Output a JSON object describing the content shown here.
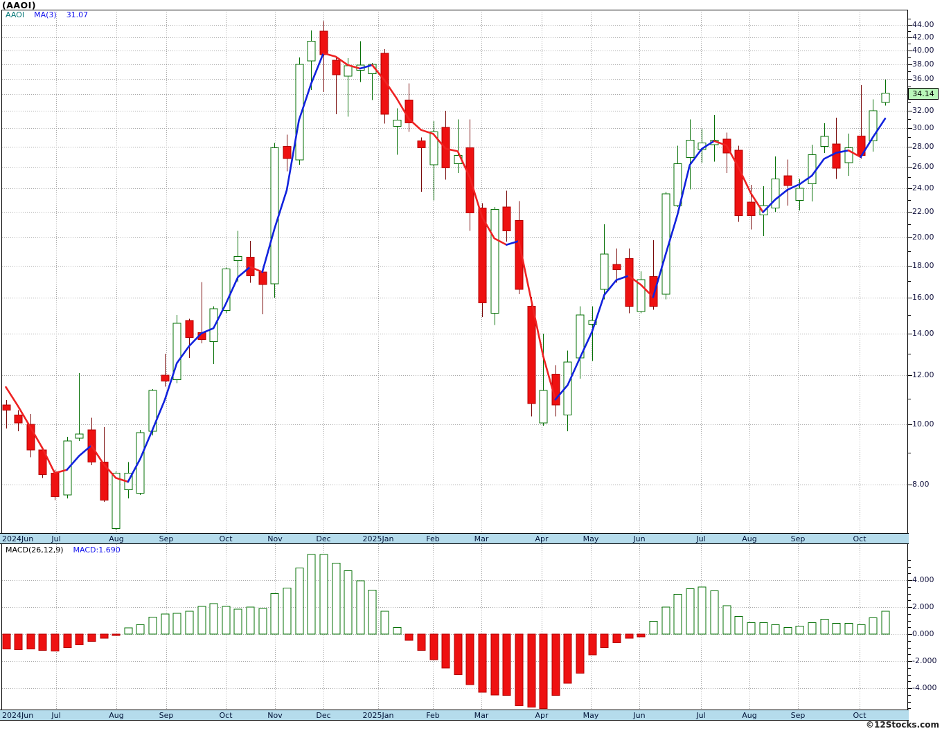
{
  "title": "(AAOI)",
  "legend": {
    "symbol": "AAOI",
    "ma_label": "MA(3)",
    "ma_value": "31.07"
  },
  "macd_panel": {
    "params_label": "MACD(26,12,9)",
    "value_label": "MACD:1.690"
  },
  "watermark": "©12Stocks.com",
  "price_axis": {
    "labeled_ticks": [
      44,
      42,
      40,
      38,
      36,
      34,
      32,
      30,
      28,
      26,
      24,
      22,
      20,
      18,
      16,
      14,
      12,
      10,
      8
    ],
    "minor_step": 1,
    "last_price_label": "34.14"
  },
  "macd_axis": {
    "labeled_ticks": [
      4,
      2,
      0,
      -2,
      -4
    ],
    "minor_step": 0.5
  },
  "x_axis": {
    "months": [
      {
        "label": "2024Jun",
        "line": null,
        "x": 3
      },
      {
        "label": "Jul",
        "line": 81
      },
      {
        "label": "Aug",
        "line": 168
      },
      {
        "label": "Sep",
        "line": 240
      },
      {
        "label": "Oct",
        "line": 326
      },
      {
        "label": "Nov",
        "line": 397
      },
      {
        "label": "Dec",
        "line": 467
      },
      {
        "label": "2025Jan",
        "line": 546
      },
      {
        "label": "Feb",
        "line": 625
      },
      {
        "label": "Mar",
        "line": 695
      },
      {
        "label": "Apr",
        "line": 782
      },
      {
        "label": "May",
        "line": 853
      },
      {
        "label": "Jun",
        "line": 923
      },
      {
        "label": "Jul",
        "line": 1012
      },
      {
        "label": "Aug",
        "line": 1082
      },
      {
        "label": "Sep",
        "line": 1152
      },
      {
        "label": "Oct",
        "line": 1241
      }
    ]
  },
  "colors": {
    "candle_up": "#067006",
    "candle_down_fill": "#ee1111",
    "candle_down_border": "#b30000",
    "wick_down": "#7a0a0a",
    "ma_up": "#1122dd",
    "ma_down": "#ee2222",
    "grid": "#a8a8a8",
    "strip_bg": "#b5dcec",
    "strip_text": "#001237",
    "axis_text": "#10103c",
    "badge_bg": "#b9f7b9",
    "legend_symbol": "#067878",
    "legend_value": "#1111ee"
  },
  "chart_data": {
    "type": "candlestick",
    "symbol": "AAOI",
    "interval": "weekly",
    "x_range": "Jun 2024 - Oct 2025",
    "y_scale": "log",
    "price_ylim": [
      6.75,
      44.6
    ],
    "moving_average": {
      "period": 3,
      "last_value": 31.07,
      "seed": [
        12.4,
        11.5
      ]
    },
    "last_close": 34.14,
    "ohlc": [
      [
        10.75,
        10.95,
        9.85,
        10.55
      ],
      [
        10.35,
        10.55,
        9.75,
        10.05
      ],
      [
        10.0,
        10.4,
        8.85,
        9.1
      ],
      [
        9.1,
        9.2,
        8.2,
        8.3
      ],
      [
        8.35,
        8.45,
        7.55,
        7.65
      ],
      [
        7.7,
        9.55,
        7.6,
        9.4
      ],
      [
        9.5,
        12.1,
        9.4,
        9.65
      ],
      [
        9.8,
        10.25,
        8.6,
        8.7
      ],
      [
        8.7,
        9.9,
        7.5,
        7.55
      ],
      [
        6.8,
        8.4,
        6.75,
        8.35
      ],
      [
        7.85,
        8.7,
        7.6,
        8.35
      ],
      [
        7.75,
        9.8,
        7.7,
        9.7
      ],
      [
        9.75,
        11.4,
        9.6,
        11.35
      ],
      [
        12.0,
        13.0,
        11.5,
        11.75
      ],
      [
        11.8,
        15.0,
        11.65,
        14.55
      ],
      [
        14.7,
        14.8,
        12.8,
        13.8
      ],
      [
        14.05,
        16.95,
        13.5,
        13.7
      ],
      [
        13.6,
        15.5,
        12.5,
        15.35
      ],
      [
        15.25,
        17.9,
        15.1,
        17.8
      ],
      [
        18.35,
        20.5,
        16.95,
        18.65
      ],
      [
        18.6,
        19.75,
        16.9,
        17.35
      ],
      [
        17.6,
        17.8,
        15.05,
        16.8
      ],
      [
        16.85,
        28.4,
        16.0,
        27.9
      ],
      [
        28.05,
        29.3,
        25.55,
        26.8
      ],
      [
        26.65,
        39.0,
        26.2,
        38.0
      ],
      [
        38.5,
        43.1,
        34.55,
        41.4
      ],
      [
        43.0,
        44.6,
        34.3,
        39.4
      ],
      [
        38.6,
        39.2,
        31.6,
        36.55
      ],
      [
        36.4,
        38.9,
        31.3,
        37.8
      ],
      [
        37.2,
        41.4,
        35.6,
        37.9
      ],
      [
        36.7,
        38.2,
        33.3,
        38.0
      ],
      [
        39.6,
        40.2,
        30.5,
        31.6
      ],
      [
        30.2,
        32.3,
        27.2,
        30.9
      ],
      [
        33.3,
        35.4,
        29.6,
        30.6
      ],
      [
        28.6,
        29.0,
        23.7,
        27.9
      ],
      [
        26.2,
        30.8,
        22.95,
        29.6
      ],
      [
        30.1,
        32.0,
        24.8,
        25.9
      ],
      [
        26.3,
        31.0,
        25.4,
        27.1
      ],
      [
        27.9,
        31.0,
        20.5,
        21.9
      ],
      [
        22.3,
        22.7,
        14.9,
        15.7
      ],
      [
        15.1,
        22.4,
        14.45,
        22.2
      ],
      [
        22.4,
        23.8,
        19.7,
        20.5
      ],
      [
        21.3,
        22.9,
        16.2,
        16.5
      ],
      [
        15.5,
        16.05,
        10.3,
        10.8
      ],
      [
        10.05,
        14.0,
        9.95,
        11.35
      ],
      [
        12.05,
        12.45,
        10.3,
        10.75
      ],
      [
        10.35,
        13.15,
        9.75,
        12.6
      ],
      [
        12.8,
        15.5,
        11.85,
        15.0
      ],
      [
        14.5,
        15.5,
        12.65,
        14.7
      ],
      [
        16.5,
        21.0,
        15.9,
        18.8
      ],
      [
        18.1,
        19.2,
        16.9,
        17.75
      ],
      [
        18.5,
        19.2,
        15.1,
        15.5
      ],
      [
        15.2,
        17.65,
        15.1,
        17.1
      ],
      [
        17.3,
        19.8,
        15.3,
        15.5
      ],
      [
        16.2,
        23.7,
        15.9,
        23.5
      ],
      [
        22.5,
        28.1,
        22.4,
        26.3
      ],
      [
        26.9,
        31.0,
        23.9,
        28.7
      ],
      [
        27.7,
        29.9,
        26.4,
        28.4
      ],
      [
        28.2,
        31.5,
        26.5,
        28.7
      ],
      [
        28.8,
        29.5,
        25.4,
        27.35
      ],
      [
        27.65,
        28.1,
        21.2,
        21.7
      ],
      [
        22.8,
        24.3,
        20.6,
        21.7
      ],
      [
        21.75,
        24.2,
        20.1,
        22.5
      ],
      [
        22.3,
        27.0,
        22.0,
        24.85
      ],
      [
        25.15,
        26.7,
        22.5,
        24.25
      ],
      [
        22.95,
        24.85,
        22.1,
        24.0
      ],
      [
        24.4,
        28.2,
        22.85,
        27.2
      ],
      [
        28.05,
        30.55,
        27.35,
        29.1
      ],
      [
        28.3,
        31.2,
        24.85,
        25.85
      ],
      [
        26.4,
        29.4,
        25.15,
        27.9
      ],
      [
        29.15,
        35.2,
        26.8,
        27.1
      ],
      [
        28.6,
        33.4,
        27.5,
        32.0
      ],
      [
        33.0,
        35.9,
        32.6,
        34.14
      ]
    ],
    "indicator": {
      "type": "bar",
      "name": "MACD(26,12,9) histogram",
      "last_value": 1.69,
      "ylim": [
        -5.5,
        5.9
      ],
      "values": [
        -1.1,
        -1.15,
        -1.1,
        -1.2,
        -1.25,
        -1.0,
        -0.8,
        -0.55,
        -0.3,
        -0.1,
        0.45,
        0.7,
        1.25,
        1.5,
        1.55,
        1.7,
        2.05,
        2.25,
        2.05,
        1.85,
        2.0,
        1.9,
        3.0,
        3.4,
        4.9,
        5.9,
        5.9,
        5.25,
        4.7,
        3.95,
        3.25,
        1.7,
        0.5,
        -0.45,
        -1.2,
        -1.9,
        -2.5,
        -3.0,
        -3.75,
        -4.3,
        -4.5,
        -4.55,
        -5.3,
        -5.4,
        -5.5,
        -4.55,
        -3.65,
        -2.9,
        -1.55,
        -1.0,
        -0.65,
        -0.3,
        -0.2,
        0.95,
        2.0,
        2.95,
        3.35,
        3.5,
        3.2,
        2.1,
        1.3,
        0.85,
        0.85,
        0.7,
        0.5,
        0.6,
        0.85,
        1.1,
        0.8,
        0.8,
        0.7,
        1.2,
        1.69
      ]
    }
  }
}
